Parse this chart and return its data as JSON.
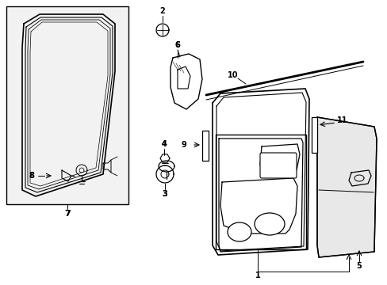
{
  "bg": "#ffffff",
  "lc": "#000000",
  "box_bg": "#f0f0f0"
}
